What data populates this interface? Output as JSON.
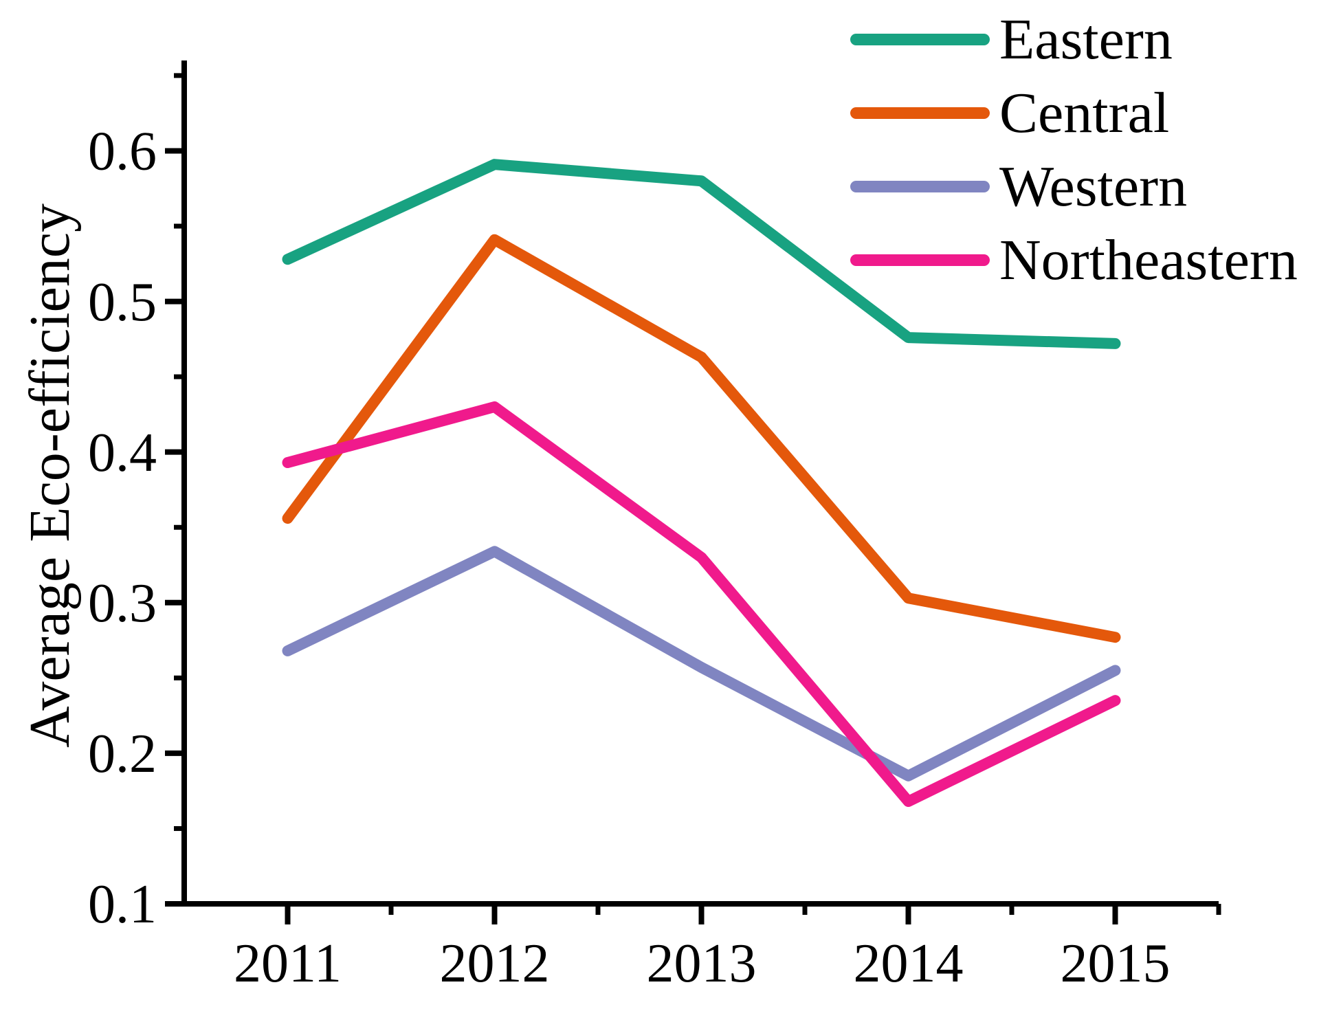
{
  "chart_data": {
    "type": "line",
    "title": "",
    "xlabel": "",
    "ylabel": "Average Eco-efficiency",
    "x": [
      2011,
      2012,
      2013,
      2014,
      2015
    ],
    "x_tick_labels": [
      "2011",
      "2012",
      "2013",
      "2014",
      "2015"
    ],
    "x_minor_ticks": [
      2011.5,
      2012.5,
      2013.5,
      2014.5,
      2015.5
    ],
    "y_ticks": [
      0.1,
      0.2,
      0.3,
      0.4,
      0.5,
      0.6
    ],
    "y_tick_labels": [
      "0.1",
      "0.2",
      "0.3",
      "0.4",
      "0.5",
      "0.6"
    ],
    "y_minor_ticks": [
      0.15,
      0.25,
      0.35,
      0.45,
      0.55,
      0.65
    ],
    "xlim": [
      2010.5,
      2015.5
    ],
    "ylim": [
      0.1,
      0.66
    ],
    "grid": false,
    "legend_position": "top-right",
    "axis_color": "#000000",
    "series": [
      {
        "name": "Eastern",
        "color": "#18A281",
        "values": [
          0.528,
          0.591,
          0.58,
          0.476,
          0.472
        ]
      },
      {
        "name": "Central",
        "color": "#E4580B",
        "values": [
          0.356,
          0.541,
          0.463,
          0.303,
          0.277
        ]
      },
      {
        "name": "Western",
        "color": "#8085C1",
        "values": [
          0.268,
          0.334,
          0.257,
          0.185,
          0.255
        ]
      },
      {
        "name": "Northeastern",
        "color": "#F01A8C",
        "values": [
          0.393,
          0.43,
          0.33,
          0.168,
          0.235
        ]
      }
    ]
  }
}
